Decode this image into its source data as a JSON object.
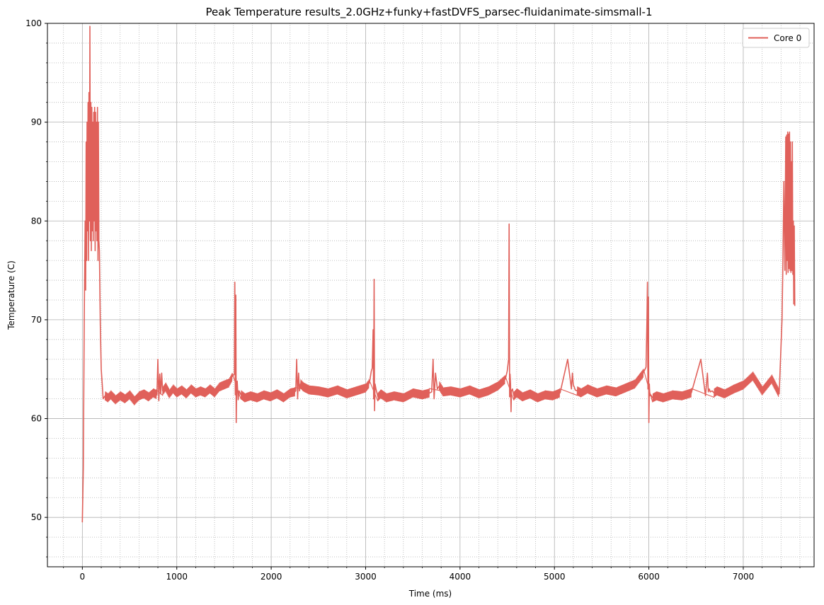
{
  "chart_data": {
    "type": "line",
    "title": "Peak Temperature results_2.0GHz+funky+fastDVFS_parsec-fluidanimate-simsmall-1",
    "xlabel": "Time (ms)",
    "ylabel": "Temperature (C)",
    "xlim": [
      -370,
      7750
    ],
    "ylim": [
      45,
      100
    ],
    "xticks": [
      0,
      1000,
      2000,
      3000,
      4000,
      5000,
      6000,
      7000
    ],
    "yticks": [
      50,
      60,
      70,
      80,
      90,
      100
    ],
    "grid": true,
    "minor_grid": true,
    "legend_position": "top-right",
    "series": [
      {
        "name": "Core 0",
        "color": "#e0605a",
        "x": [
          0,
          10,
          20,
          30,
          35,
          40,
          45,
          50,
          55,
          60,
          65,
          70,
          75,
          80,
          85,
          90,
          95,
          100,
          105,
          110,
          115,
          120,
          125,
          130,
          135,
          140,
          145,
          150,
          155,
          160,
          165,
          170,
          175,
          180,
          190,
          200,
          210,
          220,
          240,
          270,
          300,
          350,
          400,
          450,
          500,
          550,
          600,
          650,
          700,
          750,
          790,
          800,
          810,
          820,
          830,
          840,
          850,
          880,
          920,
          960,
          1000,
          1050,
          1100,
          1150,
          1200,
          1250,
          1300,
          1350,
          1400,
          1450,
          1500,
          1550,
          1590,
          1610,
          1615,
          1620,
          1625,
          1630,
          1635,
          1640,
          1650,
          1660,
          1680,
          1720,
          1780,
          1850,
          1920,
          1990,
          2060,
          2130,
          2200,
          2250,
          2260,
          2270,
          2280,
          2290,
          2300,
          2310,
          2340,
          2400,
          2500,
          2600,
          2700,
          2800,
          2900,
          3000,
          3040,
          3060,
          3070,
          3080,
          3085,
          3090,
          3095,
          3100,
          3110,
          3130,
          3160,
          3220,
          3300,
          3400,
          3500,
          3600,
          3680,
          3700,
          3715,
          3725,
          3740,
          3760,
          3780,
          3820,
          3900,
          4000,
          4100,
          4200,
          4300,
          4400,
          4480,
          4500,
          4515,
          4520,
          4525,
          4530,
          4535,
          4540,
          4545,
          4555,
          4570,
          4600,
          4660,
          4740,
          4820,
          4900,
          4980,
          5060,
          5140,
          5180,
          5190,
          5200,
          5210,
          5220,
          5240,
          5280,
          5350,
          5450,
          5550,
          5650,
          5750,
          5850,
          5940,
          5970,
          5980,
          5985,
          5990,
          5995,
          6000,
          6005,
          6010,
          6020,
          6040,
          6080,
          6150,
          6250,
          6350,
          6450,
          6550,
          6600,
          6620,
          6630,
          6640,
          6650,
          6670,
          6690,
          6720,
          6800,
          6900,
          7000,
          7100,
          7200,
          7300,
          7380,
          7410,
          7420,
          7430,
          7440,
          7450,
          7455,
          7460,
          7465,
          7470,
          7475,
          7480,
          7485,
          7490,
          7495,
          7500,
          7505,
          7510,
          7515,
          7520,
          7525,
          7530,
          7535,
          7540,
          7545
        ],
        "y": [
          49.5,
          55,
          70,
          80,
          73,
          88,
          76,
          90,
          79,
          92,
          76,
          93,
          80,
          99.7,
          78,
          92,
          77,
          91.5,
          79,
          90,
          78,
          91,
          80,
          91.5,
          77,
          91,
          79,
          90,
          78,
          91.5,
          76,
          90,
          78,
          77,
          69.5,
          65,
          63.5,
          62,
          62.3,
          62.1,
          62.4,
          61.9,
          62.3,
          62,
          62.4,
          61.8,
          62.3,
          62.5,
          62.2,
          62.6,
          62.4,
          66,
          61.8,
          64.5,
          62.5,
          64.6,
          62.8,
          63.2,
          62.5,
          63,
          62.6,
          62.9,
          62.5,
          63,
          62.6,
          62.8,
          62.6,
          63,
          62.6,
          63.2,
          63.4,
          63.6,
          64.3,
          64.5,
          73.8,
          62.4,
          72.5,
          59.6,
          63.5,
          63.8,
          61.9,
          62.8,
          62.4,
          62.1,
          62.3,
          62.1,
          62.4,
          62.2,
          62.5,
          62.1,
          62.6,
          62.7,
          62.8,
          66,
          62,
          64.6,
          62.8,
          63.5,
          63.2,
          62.9,
          62.8,
          62.6,
          62.9,
          62.5,
          62.8,
          63.1,
          63.6,
          64.8,
          65.1,
          69,
          62,
          74.1,
          60.8,
          63.5,
          63,
          62.2,
          62.5,
          62.1,
          62.3,
          62.1,
          62.6,
          62.4,
          62.6,
          62.7,
          66,
          62,
          64.6,
          63,
          63.3,
          62.7,
          62.8,
          62.6,
          62.9,
          62.5,
          62.8,
          63.3,
          64,
          64.8,
          66,
          79.7,
          62.2,
          64.5,
          63.5,
          60.7,
          62.8,
          63,
          62.3,
          62.6,
          62.2,
          62.5,
          62.1,
          62.4,
          62.3,
          62.6,
          66,
          63,
          64.6,
          63.4,
          63.2,
          62.9,
          62.8,
          62.6,
          63,
          62.6,
          62.9,
          62.7,
          63.1,
          63.5,
          64.6,
          65.2,
          70,
          73.8,
          63,
          72.3,
          59.6,
          63.5,
          62.3,
          62.4,
          62.1,
          62.3,
          62.1,
          62.4,
          62.3,
          62.6,
          66,
          62.3,
          64.6,
          62.7,
          63,
          62.7,
          62.8,
          62.6,
          62.8,
          62.5,
          63,
          63.4,
          64.3,
          62.8,
          64,
          62.5,
          70,
          76,
          84,
          75,
          88.5,
          74.6,
          88.7,
          76,
          89,
          74.8,
          88.8,
          75.2,
          89,
          75,
          88,
          74.8,
          86,
          75,
          88,
          74.6,
          80,
          71.6,
          79.5,
          71.4
        ]
      }
    ]
  }
}
